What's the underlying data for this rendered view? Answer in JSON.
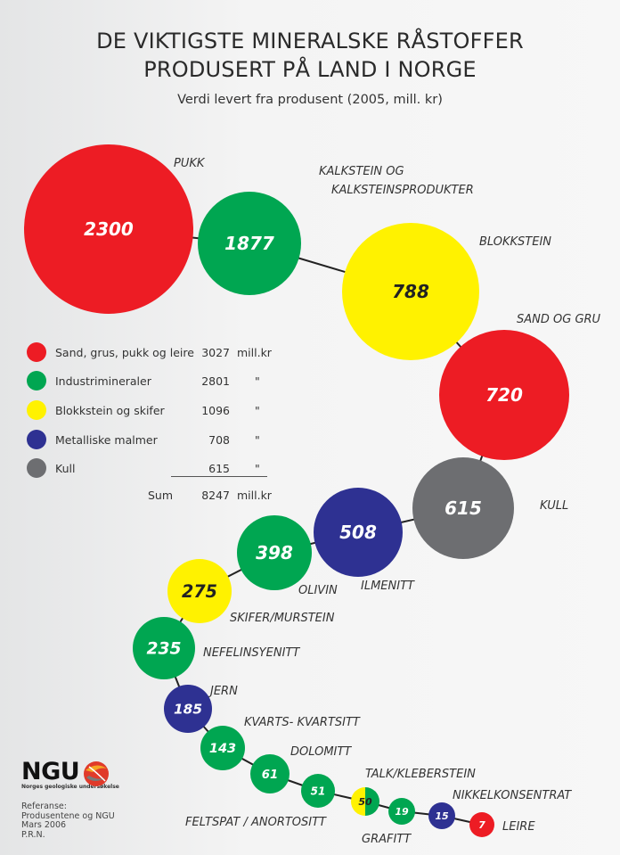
{
  "title_lines": [
    "DE VIKTIGSTE MINERALSKE RÅSTOFFER",
    "PRODUSERT PÅ LAND I NORGE"
  ],
  "subtitle": "Verdi levert fra produsent (2005, mill. kr)",
  "colors": {
    "Sand, grus, pukk og leire": "#ed1c24",
    "Industrimineraler": "#00a651",
    "Blokkstein og skifer": "#fff200",
    "Metalliske malmer": "#2e3192",
    "Kull": "#6d6e71"
  },
  "chart_data": {
    "type": "bubble",
    "title": "DE VIKTIGSTE MINERALSKE RÅSTOFFER PRODUSERT PÅ LAND I NORGE",
    "subtitle": "Verdi levert fra produsent (2005, mill. kr)",
    "points": [
      {
        "name": "PUKK",
        "value": 2300,
        "category": "Sand, grus, pukk og leire"
      },
      {
        "name": "KALKSTEIN OG\nKALKSTEINSPRODUKTER",
        "value": 1877,
        "category": "Industrimineraler"
      },
      {
        "name": "BLOKKSTEIN",
        "value": 788,
        "category": "Blokkstein og skifer"
      },
      {
        "name": "SAND OG GRU",
        "value": 720,
        "category": "Sand, grus, pukk og leire"
      },
      {
        "name": "KULL",
        "value": 615,
        "category": "Kull"
      },
      {
        "name": "ILMENITT",
        "value": 508,
        "category": "Metalliske malmer"
      },
      {
        "name": "OLIVIN",
        "value": 398,
        "category": "Industrimineraler"
      },
      {
        "name": "SKIFER/MURSTEIN",
        "value": 275,
        "category": "Blokkstein og skifer"
      },
      {
        "name": "NEFELINSYENITT",
        "value": 235,
        "category": "Industrimineraler"
      },
      {
        "name": "JERN",
        "value": 185,
        "category": "Metalliske malmer"
      },
      {
        "name": "KVARTS- KVARTSITT",
        "value": 143,
        "category": "Industrimineraler"
      },
      {
        "name": "DOLOMITT",
        "value": 61,
        "category": "Industrimineraler"
      },
      {
        "name": "FELTSPAT / ANORTOSITT",
        "value": 51,
        "category": "Industrimineraler"
      },
      {
        "name": "TALK/KLEBERSTEIN",
        "value": 50,
        "category": [
          "Blokkstein og skifer",
          "Industrimineraler"
        ]
      },
      {
        "name": "GRAFITT",
        "value": 19,
        "category": "Industrimineraler"
      },
      {
        "name": "NIKKELKONSENTRAT",
        "value": 15,
        "category": "Metalliske malmer"
      },
      {
        "name": "LEIRE",
        "value": 7,
        "category": "Sand, grus, pukk og leire"
      }
    ]
  },
  "legend": {
    "items": [
      {
        "label": "Sand, grus, pukk og leire",
        "value": "3027",
        "unit": "mill.kr",
        "color": "#ed1c24"
      },
      {
        "label": "Industrimineraler",
        "value": "2801",
        "unit": "\"",
        "color": "#00a651"
      },
      {
        "label": "Blokkstein og skifer",
        "value": "1096",
        "unit": "\"",
        "color": "#fff200"
      },
      {
        "label": "Metalliske malmer",
        "value": "708",
        "unit": "\"",
        "color": "#2e3192"
      },
      {
        "label": "Kull",
        "value": "615",
        "unit": "\"",
        "color": "#6d6e71"
      }
    ],
    "sum_label": "Sum",
    "sum_value": "8247",
    "sum_unit": "mill.kr"
  },
  "logo": {
    "text": "NGU",
    "subtext": "Norges geologiske undersøkelse",
    "icon": "ngu-globe-icon"
  },
  "reference_lines": [
    "Referanse:",
    "Produsentene og NGU",
    "Mars 2006",
    "P.R.N."
  ]
}
